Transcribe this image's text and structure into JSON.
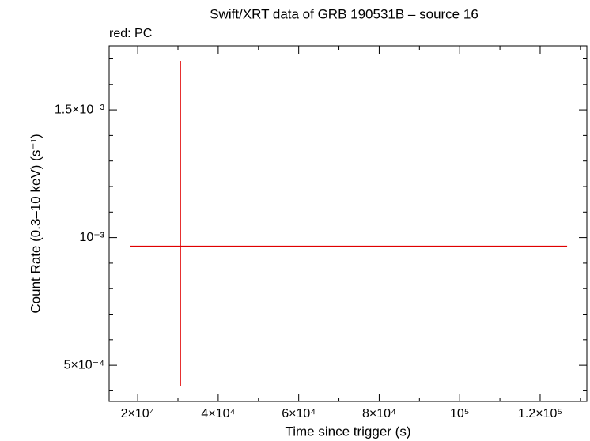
{
  "chart_data": {
    "type": "errorbar",
    "title": "Swift/XRT data of GRB 190531B – source 16",
    "subtitle": "red: PC",
    "x_label": "Time since trigger (s)",
    "y_label": "Count Rate (0.3–10 keV) (s⁻¹)",
    "series": [
      {
        "color": "#e00000",
        "x": [
          30600
        ],
        "values": [
          0.000966
        ],
        "xerr_minus": [
          12400
        ],
        "xerr_plus": [
          96100
        ],
        "yerr_minus": [
          0.000546
        ],
        "yerr_plus": [
          0.000726
        ]
      }
    ],
    "xlim": [
      12900,
      131600
    ],
    "xticks": [
      {
        "value": 20000,
        "label": "2×10⁴"
      },
      {
        "value": 40000,
        "label": "4×10⁴"
      },
      {
        "value": 60000,
        "label": "6×10⁴"
      },
      {
        "value": 80000,
        "label": "8×10⁴"
      },
      {
        "value": 100000,
        "label": "10⁵"
      },
      {
        "value": 120000,
        "label": "1.2×10⁵"
      }
    ],
    "xminorticks": [
      30000,
      50000,
      70000,
      90000,
      110000,
      130000
    ],
    "ylim": [
      0.000358,
      0.001751
    ],
    "yticks": [
      {
        "value": 0.0005,
        "label": "5×10⁻⁴"
      },
      {
        "value": 0.001,
        "label": "10⁻³"
      },
      {
        "value": 0.0015,
        "label": "1.5×10⁻³"
      }
    ],
    "yminorticks": [
      0.0004,
      0.0006,
      0.0007,
      0.0008,
      0.0009,
      0.0011,
      0.0012,
      0.0013,
      0.0014,
      0.0016,
      0.0017
    ]
  }
}
